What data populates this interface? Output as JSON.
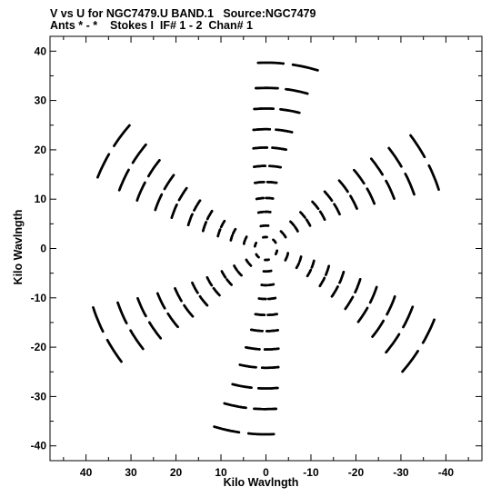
{
  "window": {
    "title_line1": "V vs U for NGC7479.U BAND.1   Source:NGC7479",
    "title_line2": "Ants * - *    Stokes I  IF# 1 - 2  Chan# 1"
  },
  "chart_data": {
    "type": "scatter",
    "title": "V vs U for NGC7479.U BAND.1   Source:NGC7479",
    "subtitle": "Ants * - *    Stokes I  IF# 1 - 2  Chan# 1",
    "xlabel": "Kilo Wavlngth",
    "ylabel": "Kilo Wavlngth",
    "xlim": [
      48,
      -48
    ],
    "ylim": [
      -43,
      43
    ],
    "x_reversed": true,
    "grid": false,
    "x_ticks": [
      40,
      30,
      20,
      10,
      0,
      -10,
      -20,
      -30,
      -40
    ],
    "x_tick_labels": [
      "40",
      "30",
      "20",
      "10",
      "0",
      "-10",
      "-20",
      "-30",
      "-40"
    ],
    "y_ticks": [
      40,
      30,
      20,
      10,
      0,
      -10,
      -20,
      -30,
      -40
    ],
    "y_tick_labels": [
      "40",
      "30",
      "20",
      "10",
      "0",
      "-10",
      "-20",
      "-30",
      "-40"
    ],
    "marker_color": "#000000",
    "series": [
      {
        "arm_baselines_klambda": [
          2.5,
          5,
          8,
          11,
          14.5,
          18,
          22,
          26,
          30.5,
          35,
          40.5
        ],
        "arm_angles_deg": [
          20,
          85,
          140,
          200,
          265,
          320
        ],
        "hour_angle_span_deg": 22,
        "segments_per_track": 2
      }
    ]
  }
}
